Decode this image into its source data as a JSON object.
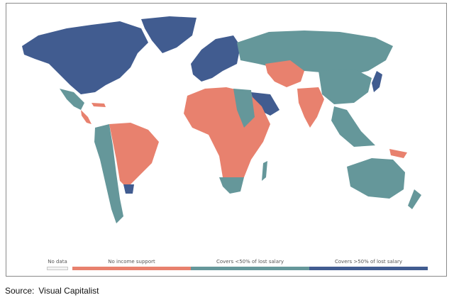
{
  "legend": {
    "no_data": "No data",
    "no_income_support": "No income support",
    "covers_under_50": "Covers <50% of lost salary",
    "covers_over_50": "Covers >50% of lost salary"
  },
  "colors": {
    "no_data": "#f2f2f2",
    "no_income_support": "#e8816e",
    "covers_under_50": "#65979a",
    "covers_over_50": "#415c90"
  },
  "source": {
    "label": "Source:",
    "value": "Visual Capitalist"
  }
}
